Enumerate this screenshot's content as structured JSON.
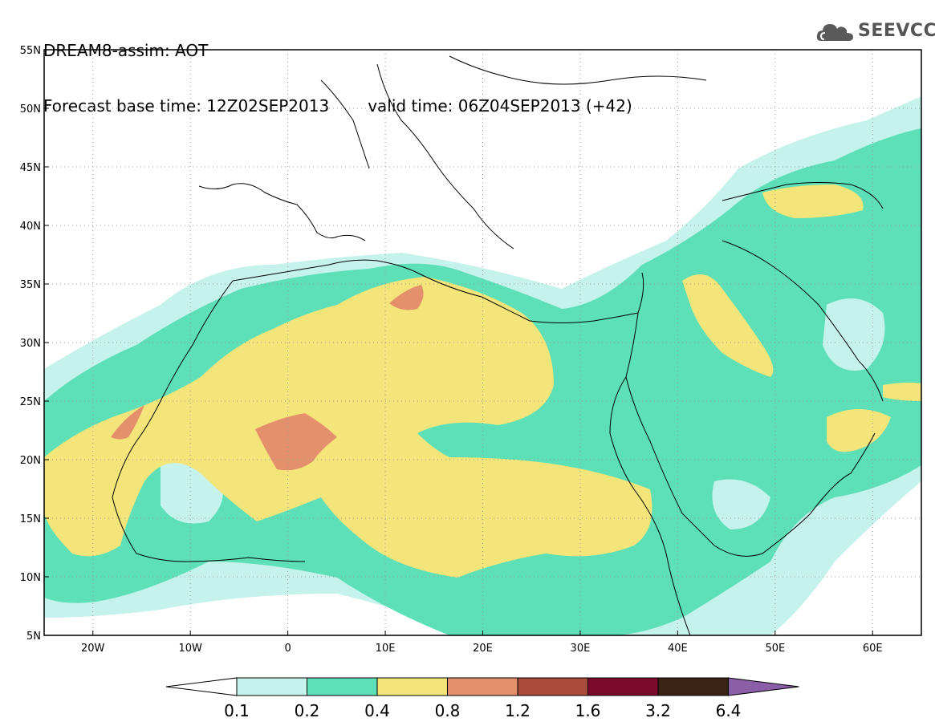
{
  "header": {
    "line1": "DREAM8-assim: AOT",
    "base_label": "Forecast base time: 12Z02SEP2013",
    "valid_label": "valid time: 06Z04SEP2013 (+42)"
  },
  "logo": {
    "text": "SEEVCCC",
    "icon": "cloud-icon"
  },
  "map": {
    "lon_range": [
      -25,
      65
    ],
    "lat_range": [
      5,
      55
    ],
    "lon_ticks": [
      {
        "value": -20,
        "label": "20W"
      },
      {
        "value": -10,
        "label": "10W"
      },
      {
        "value": 0,
        "label": "0"
      },
      {
        "value": 10,
        "label": "10E"
      },
      {
        "value": 20,
        "label": "20E"
      },
      {
        "value": 30,
        "label": "30E"
      },
      {
        "value": 40,
        "label": "40E"
      },
      {
        "value": 50,
        "label": "50E"
      },
      {
        "value": 60,
        "label": "60E"
      }
    ],
    "lat_ticks": [
      {
        "value": 5,
        "label": "5N"
      },
      {
        "value": 10,
        "label": "10N"
      },
      {
        "value": 15,
        "label": "15N"
      },
      {
        "value": 20,
        "label": "20N"
      },
      {
        "value": 25,
        "label": "25N"
      },
      {
        "value": 30,
        "label": "30N"
      },
      {
        "value": 35,
        "label": "35N"
      },
      {
        "value": 40,
        "label": "40N"
      },
      {
        "value": 45,
        "label": "45N"
      },
      {
        "value": 50,
        "label": "50N"
      },
      {
        "value": 55,
        "label": "55N"
      }
    ],
    "gridlines": "dotted"
  },
  "colorbar": {
    "labels": [
      "0.1",
      "0.2",
      "0.4",
      "0.8",
      "1.2",
      "1.6",
      "3.2",
      "6.4"
    ],
    "colors": [
      "#ffffff",
      "#c6f2ec",
      "#5de0b8",
      "#f3e57a",
      "#e5906c",
      "#a94b3b",
      "#7c0a2d",
      "#3a2312",
      "#8a5fa8"
    ]
  }
}
